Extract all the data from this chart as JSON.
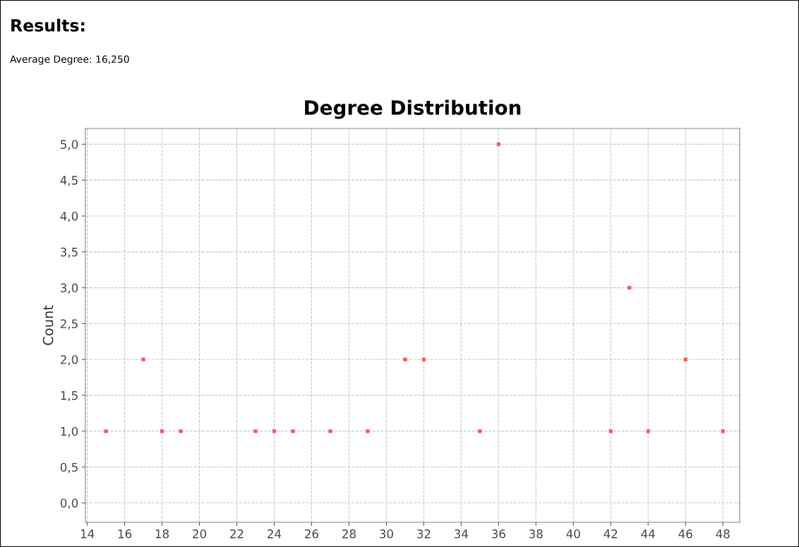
{
  "chart_data": {
    "type": "scatter",
    "title": "Degree Distribution",
    "ylabel": "Count",
    "annotations": [
      "Results:",
      "Average Degree: 16,250"
    ],
    "x": [
      15,
      17,
      18,
      19,
      23,
      24,
      25,
      27,
      29,
      31,
      32,
      35,
      36,
      42,
      43,
      44,
      46,
      48
    ],
    "series": [
      {
        "color": "#ff5555",
        "values": [
          1,
          2,
          1,
          1,
          1,
          1,
          1,
          1,
          1,
          2,
          2,
          1,
          5,
          1,
          3,
          1,
          2,
          1
        ]
      }
    ],
    "marker": "square",
    "grid": true,
    "line_style": "dashed",
    "xlim": [
      13.9,
      48.9
    ],
    "xticks": [
      14,
      16,
      18,
      20,
      22,
      24,
      26,
      28,
      30,
      32,
      34,
      36,
      38,
      40,
      42,
      44,
      46,
      48
    ],
    "ylim": [
      -0.27,
      5.22
    ],
    "yticks": [
      {
        "value": 0,
        "label": "0,0"
      },
      {
        "value": 0.5,
        "label": "0,5"
      },
      {
        "value": 1,
        "label": "1,0"
      },
      {
        "value": 1.5,
        "label": "1,5"
      },
      {
        "value": 2,
        "label": "2,0"
      },
      {
        "value": 2.5,
        "label": "2,5"
      },
      {
        "value": 3,
        "label": "3,0"
      },
      {
        "value": 3.5,
        "label": "3,5"
      },
      {
        "value": 4,
        "label": "4,0"
      },
      {
        "value": 4.5,
        "label": "4,5"
      },
      {
        "value": 5,
        "label": "5,0"
      }
    ]
  }
}
